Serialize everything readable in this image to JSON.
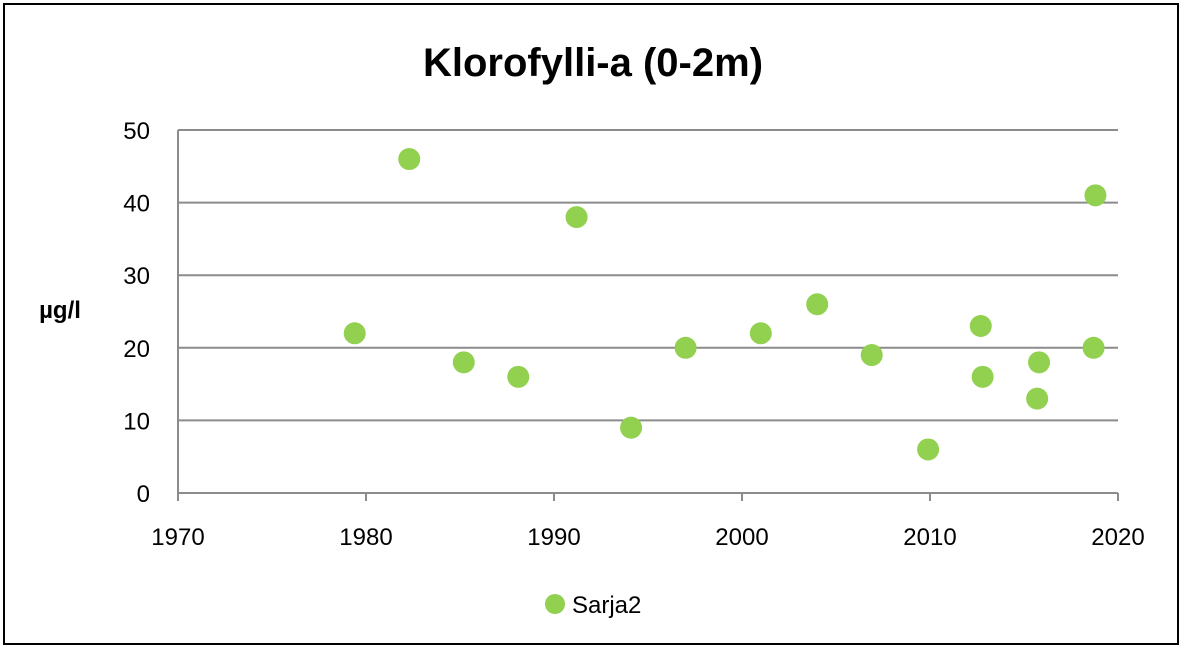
{
  "chart_data": {
    "type": "scatter",
    "title": "Klorofylli-a (0-2m)",
    "xlabel": "",
    "ylabel": "µg/l",
    "xlim": [
      1970,
      2020
    ],
    "ylim": [
      0,
      50
    ],
    "xticks": [
      1970,
      1980,
      1990,
      2000,
      2010,
      2020
    ],
    "yticks": [
      0,
      10,
      20,
      30,
      40,
      50
    ],
    "grid": true,
    "legend_position": "bottom",
    "color": "#92d050",
    "series": [
      {
        "name": "Sarja2",
        "points": [
          {
            "x": 1979.4,
            "y": 22
          },
          {
            "x": 1982.3,
            "y": 46
          },
          {
            "x": 1985.2,
            "y": 18
          },
          {
            "x": 1988.1,
            "y": 16
          },
          {
            "x": 1991.2,
            "y": 38
          },
          {
            "x": 1994.1,
            "y": 9
          },
          {
            "x": 1997.0,
            "y": 20
          },
          {
            "x": 2001.0,
            "y": 22
          },
          {
            "x": 2004.0,
            "y": 26
          },
          {
            "x": 2006.9,
            "y": 19
          },
          {
            "x": 2009.9,
            "y": 6
          },
          {
            "x": 2012.7,
            "y": 23
          },
          {
            "x": 2012.8,
            "y": 16
          },
          {
            "x": 2015.7,
            "y": 13
          },
          {
            "x": 2015.8,
            "y": 18
          },
          {
            "x": 2018.7,
            "y": 20
          },
          {
            "x": 2018.8,
            "y": 41
          }
        ]
      }
    ]
  }
}
